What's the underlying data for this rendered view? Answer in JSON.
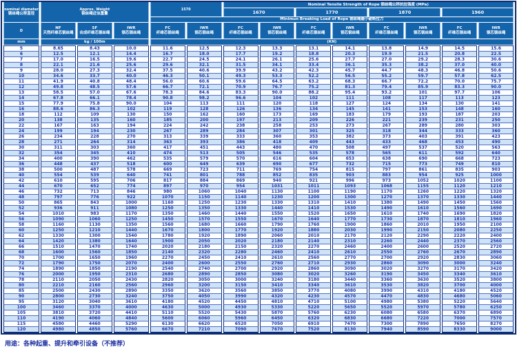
{
  "colors": {
    "header_bg": "#1464ac",
    "stripe_row": "#cfe3f6",
    "data_text": "#1733a6",
    "grid_navy": "#0d2d7d",
    "row_line": "#4f6cc8",
    "note_text": "#1b2fa0"
  },
  "header": {
    "diameter": {
      "en": "nominal diameter",
      "zh": "钢丝绳公称直径",
      "symbol": "D",
      "unit": "mm"
    },
    "weight": {
      "en": "Approx. Weight",
      "zh": "钢丝绳近似重量",
      "unit": "kg / 100m",
      "cols": [
        {
          "code": "NF",
          "zh": "天然纤维芯钢丝绳"
        },
        {
          "code": "SF",
          "zh": "合成纤维芯钢丝绳"
        },
        {
          "code": "IWR",
          "zh": "钢芯钢丝绳"
        }
      ]
    },
    "strength": {
      "en": "Nominal Tensile Strength of Rope",
      "zh": "钢丝绳公称抗拉强度 (MPa)",
      "grades": [
        "1570",
        "1670",
        "1770",
        "1870",
        "1960"
      ]
    },
    "breaking": {
      "en": "Minimun Breaking Load of Rope",
      "zh": "钢丝绳最小破断拉力",
      "unit": "(KN)"
    },
    "core": {
      "fc": {
        "code": "FC",
        "zh": "纤维芯钢丝绳"
      },
      "iwr": {
        "code": "IWR",
        "zh": "钢芯钢丝绳"
      }
    }
  },
  "note": "用途：各种起重、提升和牵引设备（不推荐）",
  "table": {
    "rows": [
      [
        "5",
        "8.65",
        "8.43",
        "10.0",
        "11.6",
        "12.5",
        "12.3",
        "13.3",
        "13.1",
        "14.1",
        "13.8",
        "14.9",
        "14.5",
        "15.6"
      ],
      [
        "6",
        "12.5",
        "12.1",
        "14.4",
        "16.7",
        "18.0",
        "17.7",
        "19.2",
        "18.8",
        "20.3",
        "19.9",
        "21.5",
        "20.8",
        "22.5"
      ],
      [
        "7",
        "17.0",
        "16.5",
        "19.6",
        "22.7",
        "24.5",
        "24.1",
        "26.1",
        "25.6",
        "27.7",
        "27.0",
        "29.2",
        "28.3",
        "30.6"
      ],
      [
        "8",
        "22.1",
        "21.6",
        "25.6",
        "29.6",
        "32.1",
        "31.5",
        "34.1",
        "33.4",
        "36.1",
        "35.3",
        "38.2",
        "37.0",
        "40.0"
      ],
      [
        "9",
        "28.0",
        "27.3",
        "32.4",
        "37.5",
        "40.6",
        "39.9",
        "43.2",
        "42.3",
        "45.7",
        "44.7",
        "48.3",
        "46.8",
        "50.6"
      ],
      [
        "10",
        "34.6",
        "33.7",
        "40.0",
        "46.3",
        "50.1",
        "49.3",
        "53.3",
        "52.2",
        "56.5",
        "55.2",
        "59.7",
        "57.8",
        "62.5"
      ],
      [
        "11",
        "41.9",
        "40.8",
        "48.4",
        "56.0",
        "60.6",
        "59.6",
        "64.5",
        "63.2",
        "68.3",
        "66.7",
        "72.2",
        "70.0",
        "75.7"
      ],
      [
        "12",
        "49.8",
        "48.5",
        "57.6",
        "66.7",
        "72.1",
        "70.9",
        "76.7",
        "75.2",
        "81.3",
        "79.4",
        "85.9",
        "83.3",
        "90.0"
      ],
      [
        "13",
        "58.5",
        "57.0",
        "67.6",
        "78.3",
        "84.6",
        "83.3",
        "90.0",
        "88.2",
        "95.4",
        "93.2",
        "101",
        "97.7",
        "106"
      ],
      [
        "14",
        "67.8",
        "66.1",
        "78.4",
        "90.8",
        "98.2",
        "96.6",
        "104",
        "102",
        "111",
        "108",
        "117",
        "113",
        "123"
      ],
      [
        "15",
        "77.9",
        "75.8",
        "90.0",
        "104",
        "113",
        "111",
        "120",
        "118",
        "127",
        "124",
        "134",
        "130",
        "141"
      ],
      [
        "16",
        "88.6",
        "86.3",
        "102",
        "119",
        "128",
        "126",
        "136",
        "134",
        "145",
        "141",
        "153",
        "148",
        "160"
      ],
      [
        "18",
        "112",
        "109",
        "130",
        "150",
        "162",
        "160",
        "173",
        "169",
        "183",
        "179",
        "193",
        "187",
        "203"
      ],
      [
        "20",
        "138",
        "135",
        "160",
        "185",
        "200",
        "197",
        "213",
        "209",
        "226",
        "221",
        "239",
        "231",
        "250"
      ],
      [
        "22",
        "167",
        "163",
        "194",
        "224",
        "242",
        "238",
        "258",
        "253",
        "273",
        "267",
        "289",
        "280",
        "303"
      ],
      [
        "24",
        "199",
        "194",
        "230",
        "267",
        "289",
        "284",
        "307",
        "301",
        "325",
        "318",
        "344",
        "333",
        "360"
      ],
      [
        "26",
        "234",
        "228",
        "270",
        "313",
        "339",
        "333",
        "360",
        "353",
        "382",
        "373",
        "403",
        "391",
        "423"
      ],
      [
        "28",
        "271",
        "264",
        "314",
        "363",
        "393",
        "386",
        "418",
        "409",
        "443",
        "433",
        "468",
        "453",
        "490"
      ],
      [
        "30",
        "311",
        "303",
        "360",
        "417",
        "451",
        "443",
        "480",
        "470",
        "508",
        "497",
        "537",
        "520",
        "563"
      ],
      [
        "32",
        "354",
        "345",
        "410",
        "474",
        "513",
        "505",
        "546",
        "535",
        "578",
        "565",
        "611",
        "592",
        "640"
      ],
      [
        "34",
        "400",
        "390",
        "462",
        "535",
        "579",
        "570",
        "616",
        "604",
        "653",
        "638",
        "690",
        "668",
        "723"
      ],
      [
        "36",
        "448",
        "437",
        "518",
        "600",
        "649",
        "639",
        "690",
        "677",
        "732",
        "715",
        "773",
        "749",
        "810"
      ],
      [
        "38",
        "500",
        "487",
        "578",
        "669",
        "723",
        "711",
        "769",
        "754",
        "815",
        "797",
        "861",
        "835",
        "903"
      ],
      [
        "40",
        "554",
        "539",
        "640",
        "741",
        "801",
        "788",
        "852",
        "835",
        "903",
        "883",
        "954",
        "925",
        "1000"
      ],
      [
        "42",
        "610",
        "595",
        "706",
        "817",
        "884",
        "869",
        "940",
        "921",
        "996",
        "973",
        "1052",
        "1020",
        "1100"
      ],
      [
        "44",
        "670",
        "652",
        "774",
        "897",
        "970",
        "954",
        "1031",
        "1011",
        "1093",
        "1068",
        "1155",
        "1120",
        "1210"
      ],
      [
        "46",
        "732",
        "713",
        "846",
        "980",
        "1060",
        "1040",
        "1130",
        "1100",
        "1190",
        "1170",
        "1260",
        "1220",
        "1320"
      ],
      [
        "48",
        "797",
        "776",
        "922",
        "1070",
        "1150",
        "1140",
        "1230",
        "1200",
        "1300",
        "1270",
        "1370",
        "1330",
        "1440"
      ],
      [
        "50",
        "865",
        "843",
        "1000",
        "1160",
        "1250",
        "1230",
        "1330",
        "1310",
        "1410",
        "1380",
        "1490",
        "1450",
        "1560"
      ],
      [
        "52",
        "936",
        "911",
        "1080",
        "1250",
        "1350",
        "1330",
        "1440",
        "1410",
        "1530",
        "1490",
        "1610",
        "1560",
        "1690"
      ],
      [
        "54",
        "1010",
        "983",
        "1170",
        "1350",
        "1460",
        "1440",
        "1550",
        "1520",
        "1650",
        "1610",
        "1740",
        "1690",
        "1820"
      ],
      [
        "56",
        "1090",
        "1060",
        "1250",
        "1450",
        "1570",
        "1550",
        "1670",
        "1640",
        "1770",
        "1730",
        "1870",
        "1810",
        "1960"
      ],
      [
        "58",
        "1160",
        "1130",
        "1350",
        "1560",
        "1680",
        "1660",
        "1790",
        "1760",
        "1900",
        "1860",
        "2010",
        "1950",
        "2100"
      ],
      [
        "60",
        "1250",
        "1210",
        "1440",
        "1670",
        "1800",
        "1770",
        "1920",
        "1880",
        "2030",
        "1990",
        "2150",
        "2080",
        "2250"
      ],
      [
        "62",
        "1330",
        "1300",
        "1540",
        "1780",
        "1920",
        "1890",
        "2060",
        "2010",
        "2170",
        "2120",
        "2290",
        "2220",
        "2400"
      ],
      [
        "64",
        "1420",
        "1380",
        "1640",
        "1900",
        "2050",
        "2020",
        "2180",
        "2140",
        "2310",
        "2260",
        "2440",
        "2370",
        "2560"
      ],
      [
        "66",
        "1510",
        "1470",
        "1740",
        "2020",
        "2180",
        "2150",
        "2320",
        "2270",
        "2460",
        "2400",
        "2600",
        "2520",
        "2720"
      ],
      [
        "68",
        "1600",
        "1560",
        "1850",
        "2140",
        "2320",
        "2280",
        "2460",
        "2410",
        "2610",
        "2550",
        "2760",
        "2670",
        "2890"
      ],
      [
        "70",
        "1700",
        "1650",
        "1960",
        "2270",
        "2450",
        "2410",
        "2610",
        "2560",
        "2770",
        "2700",
        "2920",
        "2830",
        "3060"
      ],
      [
        "72",
        "1790",
        "1750",
        "2070",
        "2400",
        "2600",
        "2550",
        "2760",
        "2710",
        "2930",
        "2860",
        "3090",
        "3000",
        "3240"
      ],
      [
        "74",
        "1890",
        "1850",
        "2190",
        "2540",
        "2740",
        "2700",
        "2920",
        "2860",
        "3090",
        "3020",
        "3270",
        "3170",
        "3420"
      ],
      [
        "76",
        "2000",
        "1950",
        "2310",
        "2680",
        "2890",
        "2850",
        "3080",
        "3020",
        "3260",
        "3190",
        "3450",
        "3340",
        "3610"
      ],
      [
        "78",
        "2110",
        "2050",
        "2430",
        "2820",
        "3050",
        "3000",
        "3240",
        "3180",
        "3440",
        "3360",
        "3630",
        "3520",
        "3800"
      ],
      [
        "80",
        "2210",
        "2160",
        "2560",
        "2960",
        "3200",
        "3150",
        "3410",
        "3340",
        "3610",
        "3530",
        "3820",
        "3700",
        "4000"
      ],
      [
        "85",
        "2500",
        "2430",
        "2890",
        "3350",
        "3620",
        "3560",
        "3850",
        "3770",
        "4080",
        "3990",
        "4310",
        "4180",
        "4520"
      ],
      [
        "90",
        "2800",
        "2730",
        "3240",
        "3750",
        "4050",
        "3990",
        "4320",
        "4230",
        "4570",
        "4470",
        "4830",
        "4680",
        "5060"
      ],
      [
        "95",
        "3120",
        "3040",
        "3610",
        "4180",
        "4520",
        "4450",
        "4810",
        "4710",
        "5100",
        "4980",
        "5380",
        "5220",
        "5640"
      ],
      [
        "100",
        "3460",
        "3370",
        "4000",
        "4630",
        "5000",
        "4930",
        "5330",
        "5220",
        "5650",
        "5520",
        "5970",
        "5780",
        "6250"
      ],
      [
        "105",
        "3810",
        "3720",
        "4410",
        "5110",
        "5520",
        "5430",
        "5870",
        "5760",
        "6230",
        "6080",
        "6580",
        "6370",
        "6890"
      ],
      [
        "110",
        "4190",
        "4060",
        "4840",
        "5600",
        "6060",
        "5960",
        "6450",
        "6320",
        "6830",
        "6680",
        "7220",
        "7000",
        "7570"
      ],
      [
        "115",
        "4580",
        "4460",
        "5290",
        "6130",
        "6620",
        "6520",
        "7050",
        "6910",
        "7470",
        "7300",
        "7890",
        "7650",
        "8270"
      ],
      [
        "120",
        "4980",
        "4850",
        "5760",
        "6670",
        "7210",
        "7090",
        "7670",
        "7520",
        "8130",
        "7940",
        "8590",
        "8330",
        "9000"
      ]
    ]
  }
}
